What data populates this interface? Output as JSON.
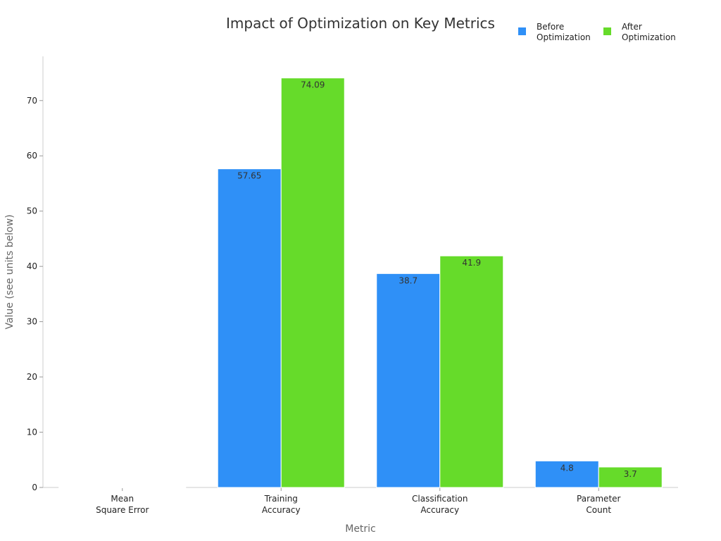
{
  "chart_data": {
    "type": "bar",
    "title": "Impact of Optimization on Key Metrics",
    "xlabel": "Metric",
    "ylabel": "Value (see units below)",
    "categories": [
      [
        "Mean",
        "Square Error"
      ],
      [
        "Training",
        "Accuracy"
      ],
      [
        "Classification",
        "Accuracy"
      ],
      [
        "Parameter",
        "Count"
      ]
    ],
    "series": [
      {
        "name": [
          "Before",
          "Optimization"
        ],
        "color": "#2f90f7",
        "values": [
          0.0,
          57.65,
          38.7,
          4.8
        ],
        "labels": [
          "",
          "57.65",
          "38.7",
          "4.8"
        ]
      },
      {
        "name": [
          "After",
          "Optimization"
        ],
        "color": "#66db2a",
        "values": [
          0.0,
          74.09,
          41.9,
          3.7
        ],
        "labels": [
          "",
          "74.09",
          "41.9",
          "3.7"
        ]
      }
    ],
    "ylim": [
      0,
      78
    ],
    "yticks": [
      0,
      10,
      20,
      30,
      40,
      50,
      60,
      70
    ],
    "grid": false,
    "legend_position": "top-right"
  }
}
